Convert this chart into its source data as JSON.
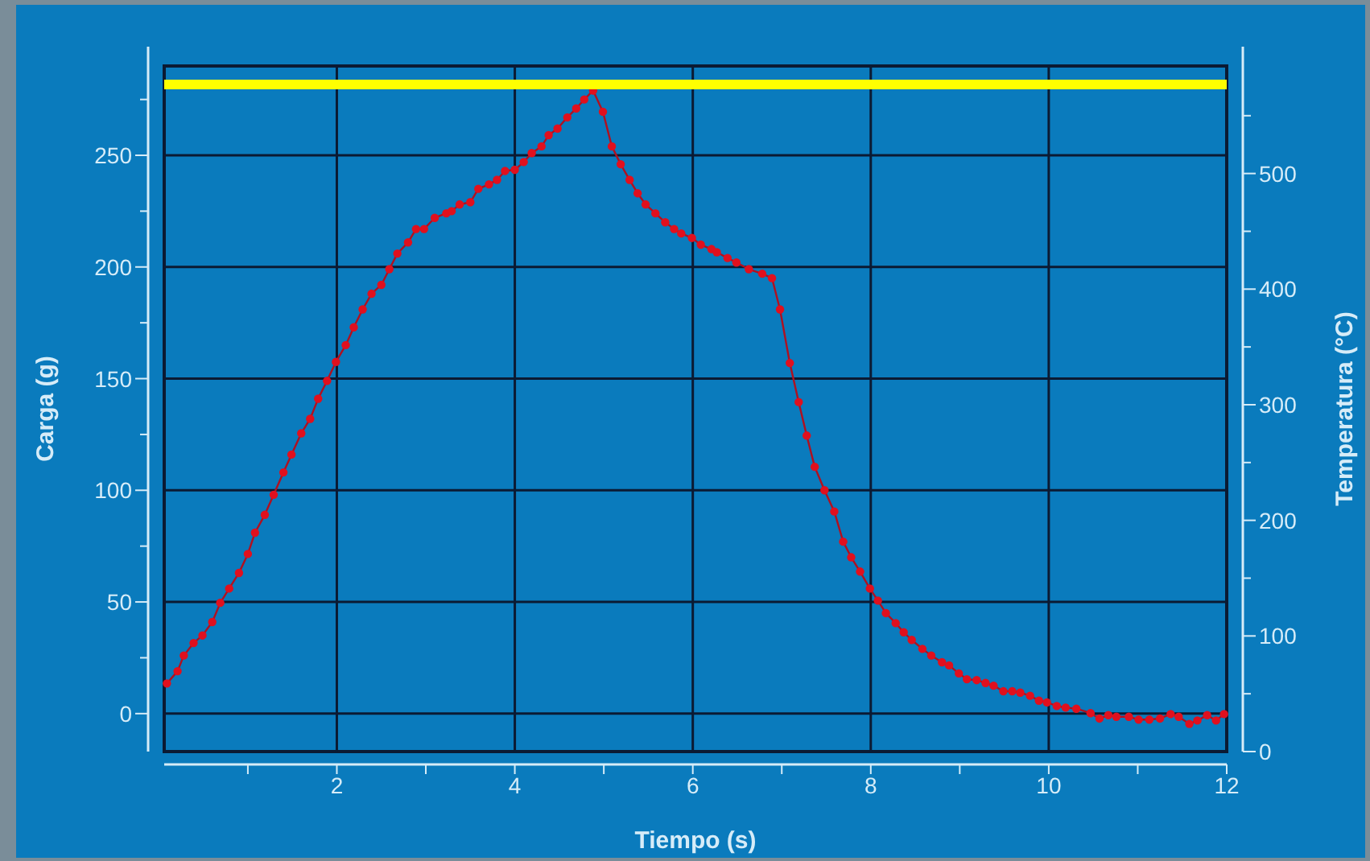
{
  "chart_data": {
    "type": "line",
    "xlabel": "Tiempo (s)",
    "ylabel": "Carga (g)",
    "y2label": "Temperatura (°C)",
    "xlim": [
      0.06,
      12
    ],
    "xticks": [
      {
        "value": 1,
        "label": null
      },
      2,
      {
        "value": 3,
        "label": null
      },
      4,
      {
        "value": 5,
        "label": null
      },
      6,
      {
        "value": 7,
        "label": null
      },
      8,
      {
        "value": 9,
        "label": null
      },
      10,
      {
        "value": 11,
        "label": null
      },
      12
    ],
    "ylim": [
      -17,
      290
    ],
    "yticks": [
      0,
      {
        "value": 25,
        "label": null
      },
      50,
      {
        "value": 75,
        "label": null
      },
      100,
      {
        "value": 125,
        "label": null
      },
      150,
      {
        "value": 175,
        "label": null
      },
      200,
      {
        "value": 225,
        "label": null
      },
      250,
      {
        "value": 275,
        "label": null
      }
    ],
    "y2lim": [
      0,
      593
    ],
    "y2ticks": [
      0,
      {
        "value": 50,
        "label": null
      },
      100,
      {
        "value": 150,
        "label": null
      },
      200,
      {
        "value": 250,
        "label": null
      },
      300,
      {
        "value": 350,
        "label": null
      },
      400,
      {
        "value": 450,
        "label": null
      },
      500,
      {
        "value": 550,
        "label": null
      }
    ],
    "grid": true,
    "marker": "circle",
    "line_style": "solid",
    "series": [
      {
        "color": "#e0101e",
        "x": [
          0.09,
          0.21,
          0.28,
          0.39,
          0.49,
          0.6,
          0.69,
          0.79,
          0.9,
          1.0,
          1.08,
          1.19,
          1.29,
          1.4,
          1.49,
          1.6,
          1.7,
          1.79,
          1.89,
          1.99,
          2.1,
          2.19,
          2.29,
          2.39,
          2.5,
          2.59,
          2.68,
          2.8,
          2.89,
          2.98,
          3.1,
          3.23,
          3.29,
          3.38,
          3.5,
          3.59,
          3.71,
          3.8,
          3.89,
          4.0,
          4.1,
          4.19,
          4.3,
          4.38,
          4.48,
          4.59,
          4.69,
          4.78,
          4.88,
          4.99,
          5.09,
          5.19,
          5.29,
          5.38,
          5.47,
          5.58,
          5.69,
          5.79,
          5.87,
          5.99,
          6.09,
          6.21,
          6.27,
          6.39,
          6.49,
          6.63,
          6.78,
          6.89,
          6.98,
          7.09,
          7.19,
          7.28,
          7.37,
          7.48,
          7.59,
          7.69,
          7.78,
          7.88,
          7.99,
          8.08,
          8.17,
          8.28,
          8.37,
          8.46,
          8.58,
          8.68,
          8.8,
          8.88,
          8.99,
          9.08,
          9.19,
          9.29,
          9.38,
          9.49,
          9.59,
          9.68,
          9.79,
          9.89,
          9.98,
          10.09,
          10.19,
          10.31,
          10.47,
          10.57,
          10.67,
          10.76,
          10.9,
          11.01,
          11.13,
          11.25,
          11.37,
          11.46,
          11.58,
          11.67,
          11.78,
          11.88,
          11.97
        ],
        "values": [
          13.5,
          19,
          26,
          31.6,
          35,
          41,
          49.6,
          56,
          63,
          71.5,
          81,
          89,
          98,
          108,
          116,
          125.5,
          132,
          141,
          149,
          157.5,
          165,
          173,
          181,
          188,
          192,
          199,
          206,
          211,
          217,
          217,
          222,
          224,
          225,
          228,
          229,
          235,
          237,
          239,
          243,
          243.5,
          247,
          251,
          254,
          259,
          262,
          267,
          271,
          275,
          279,
          269.5,
          254,
          246,
          239,
          233,
          228,
          224,
          220,
          217,
          215,
          213,
          210,
          208,
          206.6,
          204,
          202,
          199,
          197,
          195,
          181,
          157,
          139.5,
          124.5,
          110.5,
          100,
          90.5,
          77,
          70,
          63.6,
          56,
          50.6,
          45,
          40.5,
          36.4,
          33,
          29,
          26,
          23,
          21.6,
          18,
          15.4,
          15,
          13.7,
          12.5,
          10,
          10,
          9.4,
          8,
          5.8,
          5,
          3.4,
          2.7,
          2.2,
          0.2,
          -2.2,
          -0.7,
          -1.4,
          -1.4,
          -2.7,
          -2.7,
          -2.2,
          -0.2,
          -1.4,
          -4.6,
          -3.1,
          -0.7,
          -3.1,
          -0.2
        ]
      },
      {
        "color": "#ffff00",
        "axis": "y2",
        "marker": "none",
        "x": [
          0.06,
          12
        ],
        "values": [
          577,
          577
        ]
      }
    ]
  }
}
